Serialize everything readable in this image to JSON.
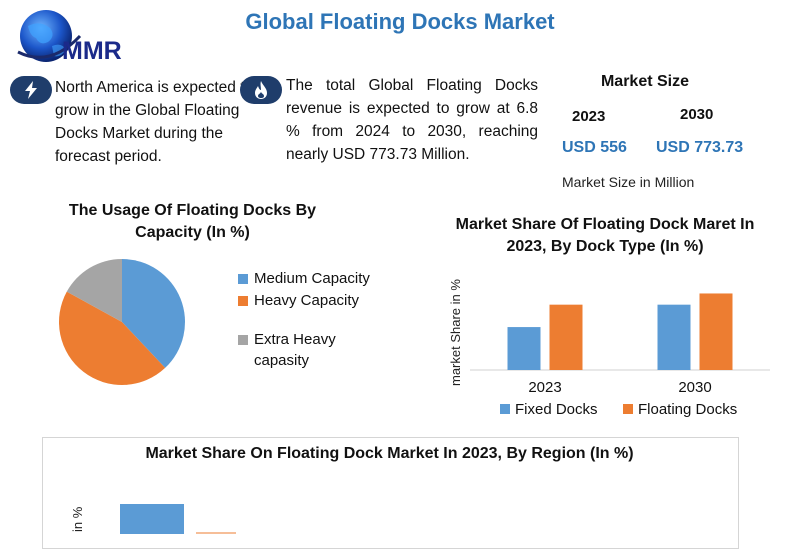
{
  "header": {
    "title": "Global Floating Docks Market",
    "logo_text": "MMR"
  },
  "facts": [
    {
      "icon": "lightning-icon",
      "text": "North America is expected to grow in the Global Floating Docks Market during the forecast period."
    },
    {
      "icon": "flame-icon",
      "text": "The total Global Floating Docks revenue is expected to grow at 6.8 % from 2024 to 2030, reaching nearly USD 773.73 Million."
    }
  ],
  "market_size": {
    "title": "Market Size",
    "years": [
      "2023",
      "2030"
    ],
    "values": [
      "USD 556",
      "USD 773.73"
    ],
    "note": "Market Size in Million"
  },
  "colors": {
    "blue": "#5b9bd5",
    "orange": "#ed7d31",
    "gray": "#a5a5a5",
    "title_blue": "#2e75b6",
    "icon_navy": "#1f3d6b"
  },
  "chart_data": [
    {
      "type": "pie",
      "title": "The Usage Of Floating Docks By Capacity (In %)",
      "categories": [
        "Medium Capacity",
        "Heavy Capacity",
        "Extra Heavy capasity"
      ],
      "values": [
        38,
        45,
        17
      ],
      "legend": "right"
    },
    {
      "type": "bar",
      "title": "Market Share Of Floating Dock Maret In 2023, By Dock Type (In %)",
      "categories": [
        "2023",
        "2030"
      ],
      "series": [
        {
          "name": "Fixed Docks",
          "values": [
            23,
            35
          ]
        },
        {
          "name": "Floating Docks",
          "values": [
            35,
            41
          ]
        }
      ],
      "ylabel": "market Share in %",
      "ylim": [
        0,
        60
      ],
      "legend": "bottom"
    },
    {
      "type": "bar",
      "title": "Market Share On Floating Dock Market In 2023, By Region (In %)",
      "ylabel": "in %"
    }
  ]
}
